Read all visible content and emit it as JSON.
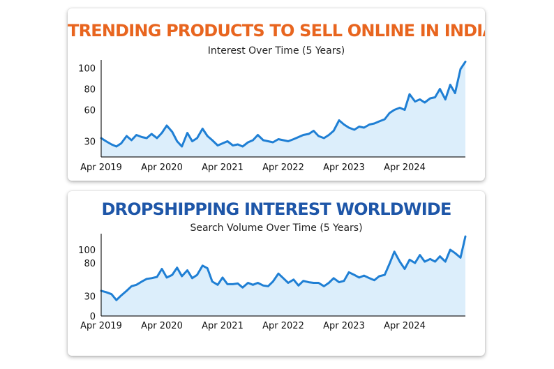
{
  "chart_data": [
    {
      "type": "area",
      "title": "TRENDING PRODUCTS TO SELL ONLINE IN INDIA",
      "subtitle": "Interest Over Time (5 Years)",
      "xlabel": "",
      "ylabel": "",
      "ylim": [
        15,
        105
      ],
      "yticks": [
        30,
        60,
        80,
        100
      ],
      "x_range": [
        2019.25,
        2025.25
      ],
      "x_ticks": [
        {
          "label": "Apr 2019",
          "x": 2019.25
        },
        {
          "label": "Apr 2020",
          "x": 2020.25
        },
        {
          "label": "Apr 2021",
          "x": 2021.25
        },
        {
          "label": "Apr 2022",
          "x": 2022.25
        },
        {
          "label": "Apr 2023",
          "x": 2023.25
        },
        {
          "label": "Apr 2024",
          "x": 2024.25
        }
      ],
      "grid": false,
      "legend": "none",
      "colors": {
        "title": "#e8651f",
        "line": "#1f7fd4",
        "fill": "#dceefb"
      },
      "series": [
        {
          "x": [
            2019.25,
            2019.33,
            2019.42,
            2019.5,
            2019.58,
            2019.67,
            2019.75,
            2019.83,
            2019.92,
            2020.0,
            2020.08,
            2020.17,
            2020.25,
            2020.33,
            2020.42,
            2020.5,
            2020.58,
            2020.67,
            2020.75,
            2020.83,
            2020.92,
            2021.0,
            2021.08,
            2021.17,
            2021.25,
            2021.33,
            2021.42,
            2021.5,
            2021.58,
            2021.67,
            2021.75,
            2021.83,
            2021.92,
            2022.0,
            2022.08,
            2022.17,
            2022.25,
            2022.33,
            2022.42,
            2022.5,
            2022.58,
            2022.67,
            2022.75,
            2022.83,
            2022.92,
            2023.0,
            2023.08,
            2023.17,
            2023.25,
            2023.33,
            2023.42,
            2023.5,
            2023.58,
            2023.67,
            2023.75,
            2023.83,
            2023.92,
            2024.0,
            2024.08,
            2024.17,
            2024.25,
            2024.33,
            2024.42,
            2024.5,
            2024.58,
            2024.67,
            2024.75,
            2024.83,
            2024.92,
            2025.0,
            2025.08,
            2025.17,
            2025.25
          ],
          "values": [
            33,
            30,
            27,
            25,
            28,
            35,
            31,
            36,
            34,
            33,
            37,
            33,
            38,
            45,
            39,
            30,
            25,
            38,
            30,
            33,
            42,
            35,
            31,
            26,
            28,
            30,
            26,
            27,
            25,
            29,
            31,
            36,
            31,
            30,
            29,
            32,
            31,
            30,
            32,
            34,
            36,
            37,
            40,
            35,
            33,
            36,
            40,
            50,
            46,
            43,
            41,
            44,
            43,
            46,
            47,
            49,
            51,
            57,
            60,
            62,
            60,
            75,
            68,
            70,
            67,
            71,
            72,
            80,
            70,
            84,
            76,
            99,
            106
          ]
        }
      ]
    },
    {
      "type": "area",
      "title": "DROPSHIPPING INTEREST WORLDWIDE",
      "subtitle": "Search Volume Over Time (5 Years)",
      "xlabel": "",
      "ylabel": "",
      "ylim": [
        0,
        120
      ],
      "yticks": [
        0,
        30,
        80,
        100
      ],
      "x_range": [
        2019.25,
        2025.25
      ],
      "x_ticks": [
        {
          "label": "Apr 2019",
          "x": 2019.25
        },
        {
          "label": "Apr 2020",
          "x": 2020.25
        },
        {
          "label": "Apr 2021",
          "x": 2021.25
        },
        {
          "label": "Apr 2022",
          "x": 2022.25
        },
        {
          "label": "Apr 2023",
          "x": 2023.25
        },
        {
          "label": "Apr 2024",
          "x": 2024.25
        }
      ],
      "grid": false,
      "legend": "none",
      "colors": {
        "title": "#1e56a8",
        "line": "#1f7fd4",
        "fill": "#dceefb"
      },
      "series": [
        {
          "x": [
            2019.25,
            2019.33,
            2019.42,
            2019.5,
            2019.58,
            2019.67,
            2019.75,
            2019.83,
            2019.92,
            2020.0,
            2020.08,
            2020.17,
            2020.25,
            2020.33,
            2020.42,
            2020.5,
            2020.58,
            2020.67,
            2020.75,
            2020.83,
            2020.92,
            2021.0,
            2021.08,
            2021.17,
            2021.25,
            2021.33,
            2021.42,
            2021.5,
            2021.58,
            2021.67,
            2021.75,
            2021.83,
            2021.92,
            2022.0,
            2022.08,
            2022.17,
            2022.25,
            2022.33,
            2022.42,
            2022.5,
            2022.58,
            2022.67,
            2022.75,
            2022.83,
            2022.92,
            2023.0,
            2023.08,
            2023.17,
            2023.25,
            2023.33,
            2023.42,
            2023.5,
            2023.58,
            2023.67,
            2023.75,
            2023.83,
            2023.92,
            2024.0,
            2024.08,
            2024.17,
            2024.25,
            2024.33,
            2024.42,
            2024.5,
            2024.58,
            2024.67,
            2024.75,
            2024.83,
            2024.92,
            2025.0,
            2025.08,
            2025.17,
            2025.25
          ],
          "values": [
            38,
            36,
            33,
            24,
            31,
            38,
            45,
            47,
            52,
            56,
            57,
            59,
            71,
            58,
            62,
            73,
            60,
            69,
            57,
            62,
            76,
            72,
            52,
            47,
            58,
            48,
            48,
            49,
            43,
            50,
            47,
            50,
            46,
            45,
            52,
            64,
            57,
            50,
            55,
            46,
            53,
            51,
            50,
            50,
            45,
            50,
            57,
            51,
            53,
            66,
            62,
            58,
            61,
            57,
            54,
            60,
            62,
            79,
            97,
            82,
            71,
            85,
            80,
            92,
            82,
            86,
            82,
            90,
            82,
            100,
            95,
            88,
            120
          ]
        }
      ]
    }
  ]
}
